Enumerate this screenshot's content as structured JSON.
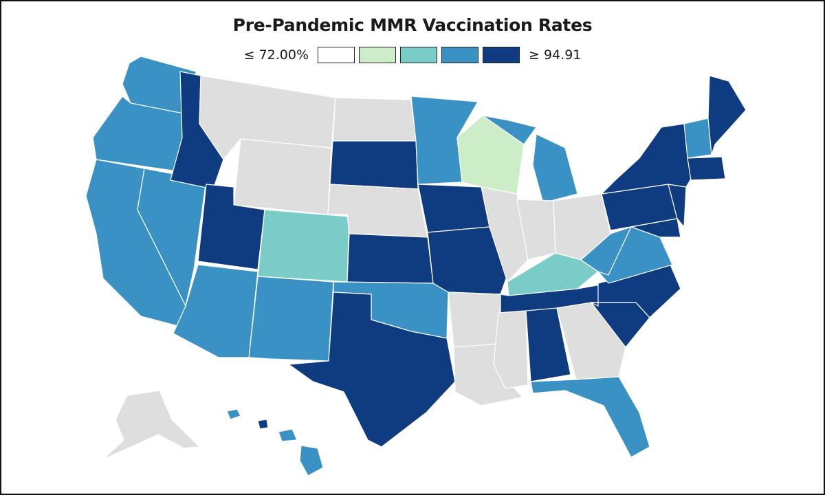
{
  "title": "Pre-Pandemic MMR Vaccination Rates",
  "legend": {
    "min_label": "≤ 72.00%",
    "max_label": "≥ 94.91",
    "bins": [
      {
        "color": "#ffffff"
      },
      {
        "color": "#ccedc8"
      },
      {
        "color": "#7accc8"
      },
      {
        "color": "#3a92c4"
      },
      {
        "color": "#0f3b80"
      }
    ]
  },
  "colors": {
    "no_data": "#dedede",
    "dark": "#0f3b80",
    "mid": "#3a92c4",
    "teal": "#7accc8",
    "light": "#ccedc8",
    "white": "#ffffff"
  }
}
